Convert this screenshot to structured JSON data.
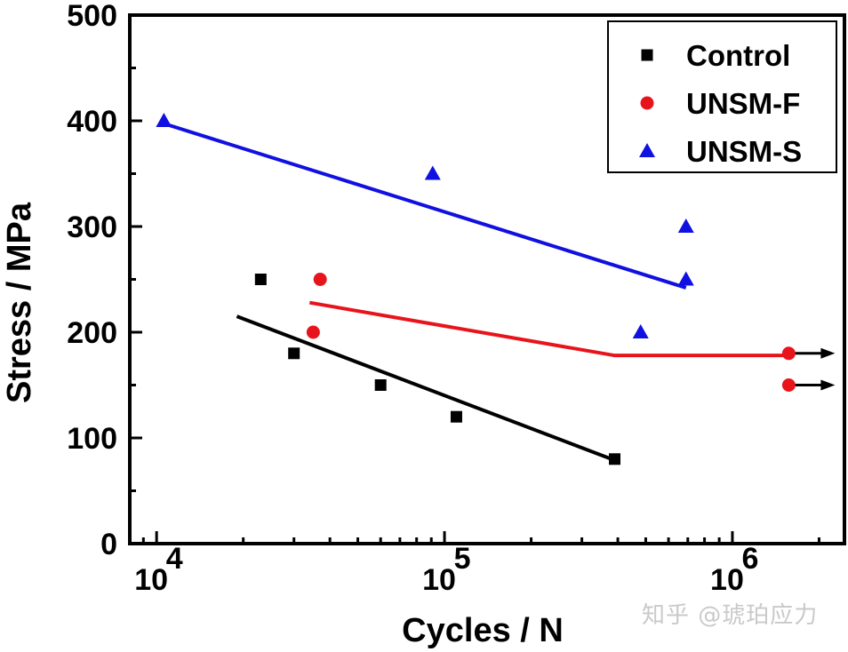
{
  "chart_data": {
    "type": "scatter",
    "title": "",
    "xlabel": "Cycles / N",
    "ylabel": "Stress / MPa",
    "xscale": "log",
    "xlim": [
      8070,
      2450000
    ],
    "ylim": [
      0,
      500
    ],
    "x_ticks": [
      {
        "value": 10000,
        "base": "10",
        "exp": "4"
      },
      {
        "value": 100000,
        "base": "10",
        "exp": "5"
      },
      {
        "value": 1000000,
        "base": "10",
        "exp": "6"
      }
    ],
    "y_ticks": [
      0,
      100,
      200,
      300,
      400,
      500
    ],
    "y_minor_step": 50,
    "grid": false,
    "legend_position": "top-right",
    "series": [
      {
        "name": "Control",
        "color": "#000000",
        "marker": "square",
        "points": [
          {
            "x": 23000,
            "y": 250
          },
          {
            "x": 30000,
            "y": 180
          },
          {
            "x": 60000,
            "y": 150
          },
          {
            "x": 110000,
            "y": 120
          },
          {
            "x": 390000,
            "y": 80
          }
        ],
        "fit_line": [
          {
            "x": 19000,
            "y": 215
          },
          {
            "x": 380000,
            "y": 80
          }
        ]
      },
      {
        "name": "UNSM-F",
        "color": "#e8141b",
        "marker": "circle",
        "points": [
          {
            "x": 37000,
            "y": 250
          },
          {
            "x": 35000,
            "y": 200
          },
          {
            "x": 1570000,
            "y": 180,
            "runout": true
          },
          {
            "x": 1570000,
            "y": 150,
            "runout": true
          }
        ],
        "fit_line": [
          {
            "x": 34000,
            "y": 228
          },
          {
            "x": 390000,
            "y": 178
          },
          {
            "x": 1570000,
            "y": 178
          }
        ]
      },
      {
        "name": "UNSM-S",
        "color": "#1010e0",
        "marker": "triangle",
        "points": [
          {
            "x": 10600,
            "y": 400
          },
          {
            "x": 91000,
            "y": 350
          },
          {
            "x": 690000,
            "y": 300
          },
          {
            "x": 690000,
            "y": 250
          },
          {
            "x": 480000,
            "y": 200
          }
        ],
        "fit_line": [
          {
            "x": 11000,
            "y": 396
          },
          {
            "x": 690000,
            "y": 242
          }
        ]
      }
    ],
    "runout_arrow_color": "#000000"
  },
  "watermark": "知乎 @琥珀应力"
}
